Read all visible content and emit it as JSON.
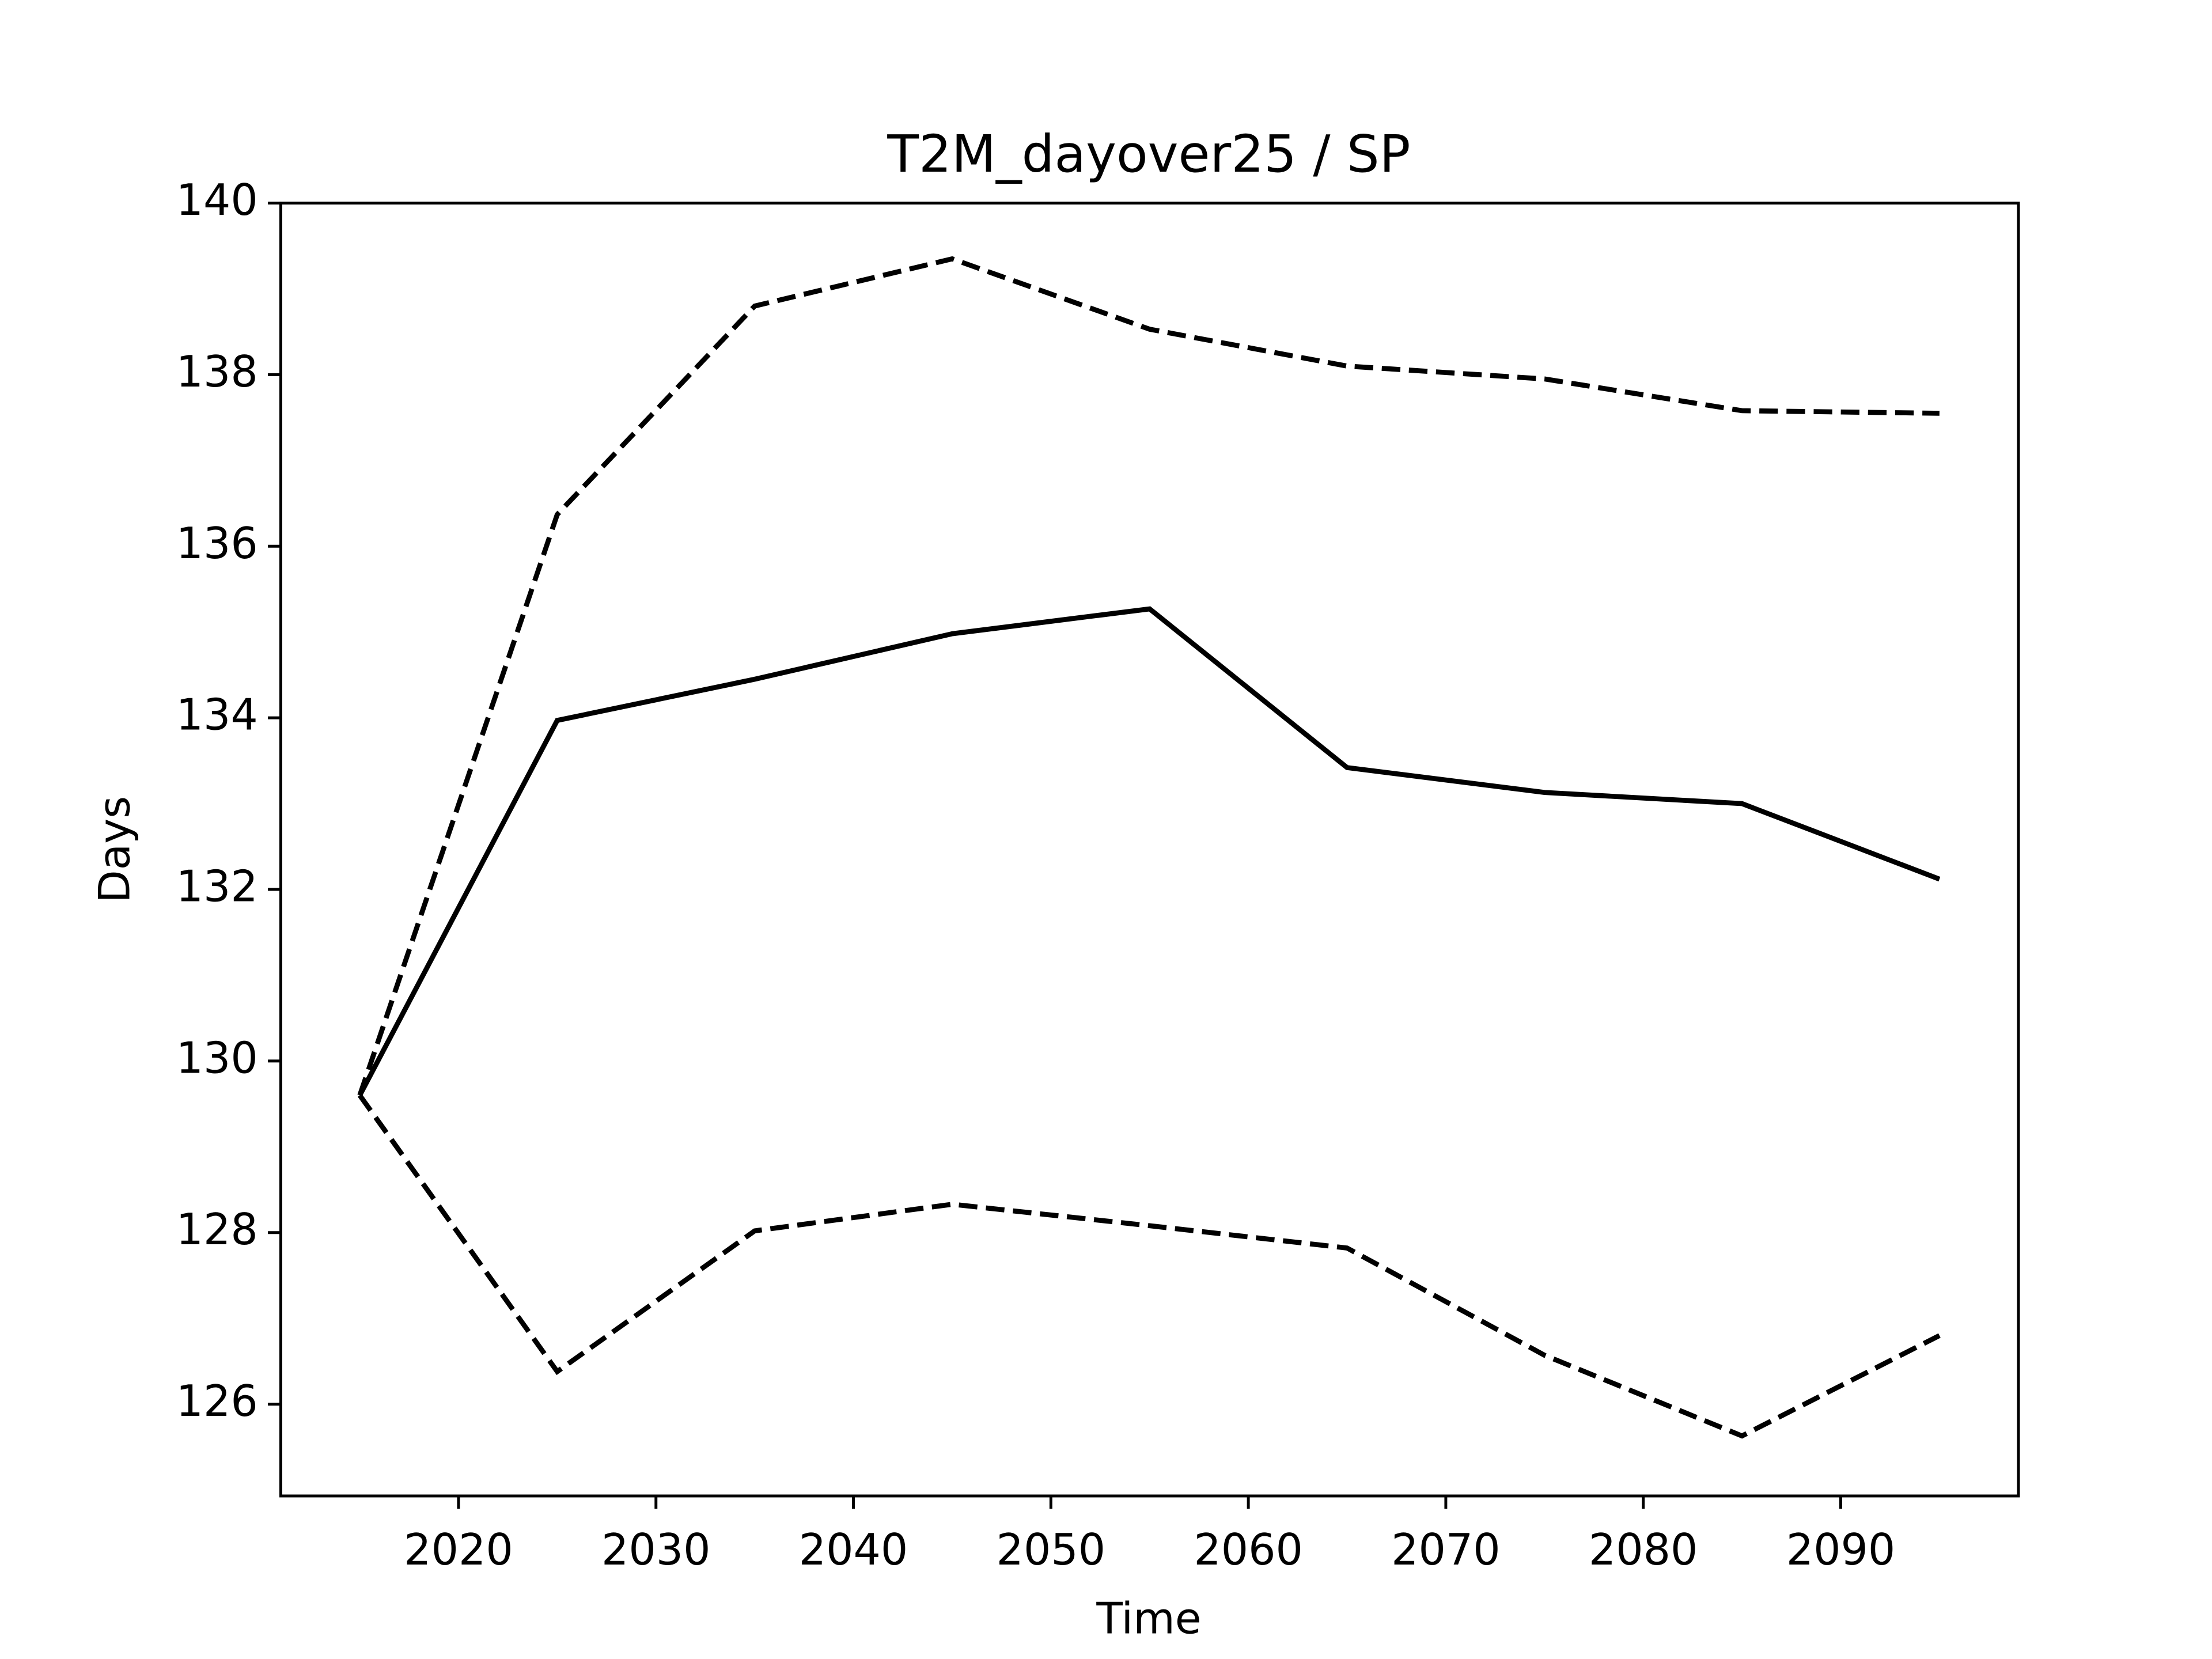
{
  "chart_data": {
    "type": "line",
    "title": "T2M_dayover25 / SP",
    "xlabel": "Time",
    "ylabel": "Days",
    "x": [
      2015,
      2025,
      2035,
      2045,
      2055,
      2065,
      2075,
      2085,
      2095
    ],
    "series": [
      {
        "color": "#000000",
        "linestyle": "solid",
        "values": [
          129.6,
          133.97,
          134.45,
          134.98,
          135.27,
          133.42,
          133.13,
          133.0,
          132.12
        ]
      },
      {
        "color": "#000000",
        "linestyle": "dashed",
        "values": [
          129.6,
          136.37,
          138.8,
          139.35,
          138.53,
          138.1,
          137.95,
          137.58,
          137.55
        ]
      },
      {
        "color": "#000000",
        "linestyle": "dashed",
        "values": [
          129.6,
          126.38,
          128.02,
          128.33,
          128.08,
          127.82,
          126.57,
          125.63,
          126.8
        ]
      }
    ],
    "xlim": [
      2011,
      2099
    ],
    "ylim": [
      124.93,
      140
    ],
    "xticks": [
      2020,
      2030,
      2040,
      2050,
      2060,
      2070,
      2080,
      2090
    ],
    "yticks": [
      126,
      128,
      130,
      132,
      134,
      136,
      138,
      140
    ],
    "grid": false
  }
}
